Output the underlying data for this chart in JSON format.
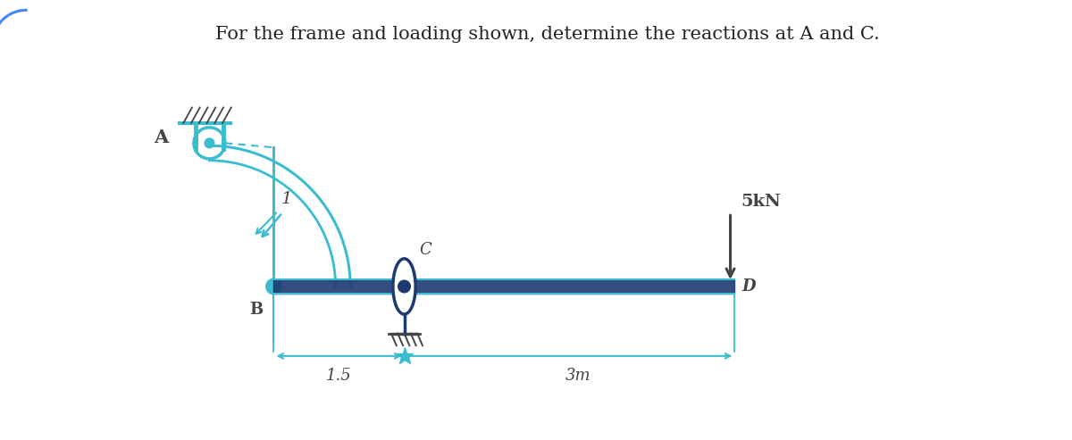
{
  "title": "For the frame and loading shown, determine the reactions at A and C.",
  "title_color": "#222222",
  "title_fontsize": 15,
  "bg_color": "#ffffff",
  "cyan": "#3bbcd0",
  "dark_blue": "#1e3a70",
  "gray": "#444444",
  "fig_width": 12.0,
  "fig_height": 4.93,
  "label_A": "A",
  "label_B": "B",
  "label_C": "C",
  "label_D": "D",
  "label_1": "1",
  "label_5kN": "5kN",
  "label_15": "1.5",
  "label_3m": "3m"
}
